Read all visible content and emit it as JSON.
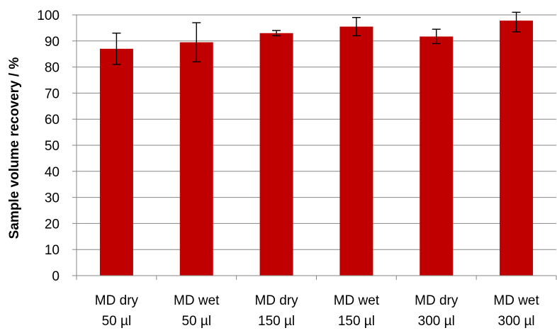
{
  "chart_data": {
    "type": "bar",
    "categories": [
      [
        "MD dry",
        "50 µl"
      ],
      [
        "MD wet",
        "50 µl"
      ],
      [
        "MD dry",
        "150 µl"
      ],
      [
        "MD wet",
        "150 µl"
      ],
      [
        "MD dry",
        "300 µl"
      ],
      [
        "MD wet",
        "300 µl"
      ]
    ],
    "values": [
      87,
      89.5,
      93,
      95.5,
      91.7,
      97.8
    ],
    "error_low": [
      81,
      82,
      92,
      92,
      89,
      93.5
    ],
    "error_high": [
      93,
      97,
      94,
      99,
      94.5,
      101
    ],
    "title": "",
    "xlabel": "",
    "ylabel": "Sample volume recovery / %",
    "ylim": [
      0,
      100
    ],
    "yticks": [
      "0",
      "10",
      "20",
      "30",
      "40",
      "50",
      "60",
      "70",
      "80",
      "90",
      "100"
    ],
    "grid": true,
    "legend": "none",
    "bar_color": "#C00000",
    "grid_color": "#868686"
  }
}
